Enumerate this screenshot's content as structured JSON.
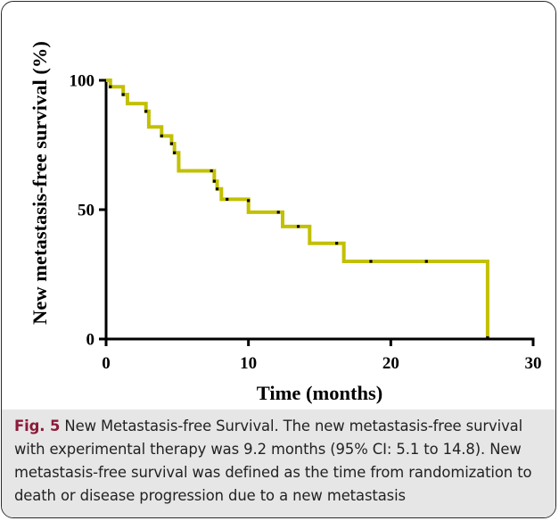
{
  "chart_data": {
    "type": "line",
    "subtype": "kaplan-meier step curve",
    "xlabel": "Time (months)",
    "ylabel": "New metastasis-free survival (%)",
    "xlim": [
      0,
      30
    ],
    "ylim": [
      0,
      100
    ],
    "x_ticks": [
      0,
      10,
      20,
      30
    ],
    "y_ticks": [
      0,
      50,
      100
    ],
    "grid": false,
    "legend": "none",
    "colors": {
      "curve": "#c2c000",
      "censor": "#000000",
      "axes": "#000000"
    },
    "series": [
      {
        "steps": [
          {
            "x": 0,
            "y": 100
          },
          {
            "x": 0.3,
            "y": 97.5
          },
          {
            "x": 1.2,
            "y": 94.5
          },
          {
            "x": 1.5,
            "y": 91
          },
          {
            "x": 2.8,
            "y": 88
          },
          {
            "x": 3.0,
            "y": 82
          },
          {
            "x": 3.9,
            "y": 78.5
          },
          {
            "x": 4.6,
            "y": 75.5
          },
          {
            "x": 4.8,
            "y": 72
          },
          {
            "x": 5.1,
            "y": 65
          },
          {
            "x": 7.6,
            "y": 61
          },
          {
            "x": 7.8,
            "y": 58
          },
          {
            "x": 8.1,
            "y": 54
          },
          {
            "x": 10.0,
            "y": 49
          },
          {
            "x": 12.4,
            "y": 43.5
          },
          {
            "x": 14.3,
            "y": 37
          },
          {
            "x": 16.7,
            "y": 30
          },
          {
            "x": 26.8,
            "y": 0.5
          }
        ],
        "censored": [
          {
            "x": 0.3,
            "y": 97.5
          },
          {
            "x": 1.2,
            "y": 94.5
          },
          {
            "x": 2.8,
            "y": 88
          },
          {
            "x": 3.9,
            "y": 78.5
          },
          {
            "x": 4.6,
            "y": 75.5
          },
          {
            "x": 4.8,
            "y": 72
          },
          {
            "x": 7.4,
            "y": 65
          },
          {
            "x": 7.6,
            "y": 61
          },
          {
            "x": 7.8,
            "y": 58
          },
          {
            "x": 8.5,
            "y": 54
          },
          {
            "x": 10.0,
            "y": 53.5
          },
          {
            "x": 12.1,
            "y": 49
          },
          {
            "x": 13.5,
            "y": 43.5
          },
          {
            "x": 16.2,
            "y": 37
          },
          {
            "x": 18.6,
            "y": 30
          },
          {
            "x": 22.5,
            "y": 30
          },
          {
            "x": 26.8,
            "y": 0.5
          }
        ]
      }
    ]
  },
  "caption": {
    "label": "Fig. 5",
    "text": "New Metastasis-free Survival. The new metastasis-free survival with experimental therapy was 9.2 months (95% CI: 5.1 to 14.8). New metastasis-free survival was defined as the time from randomization to death or disease progression due to a new metastasis"
  }
}
